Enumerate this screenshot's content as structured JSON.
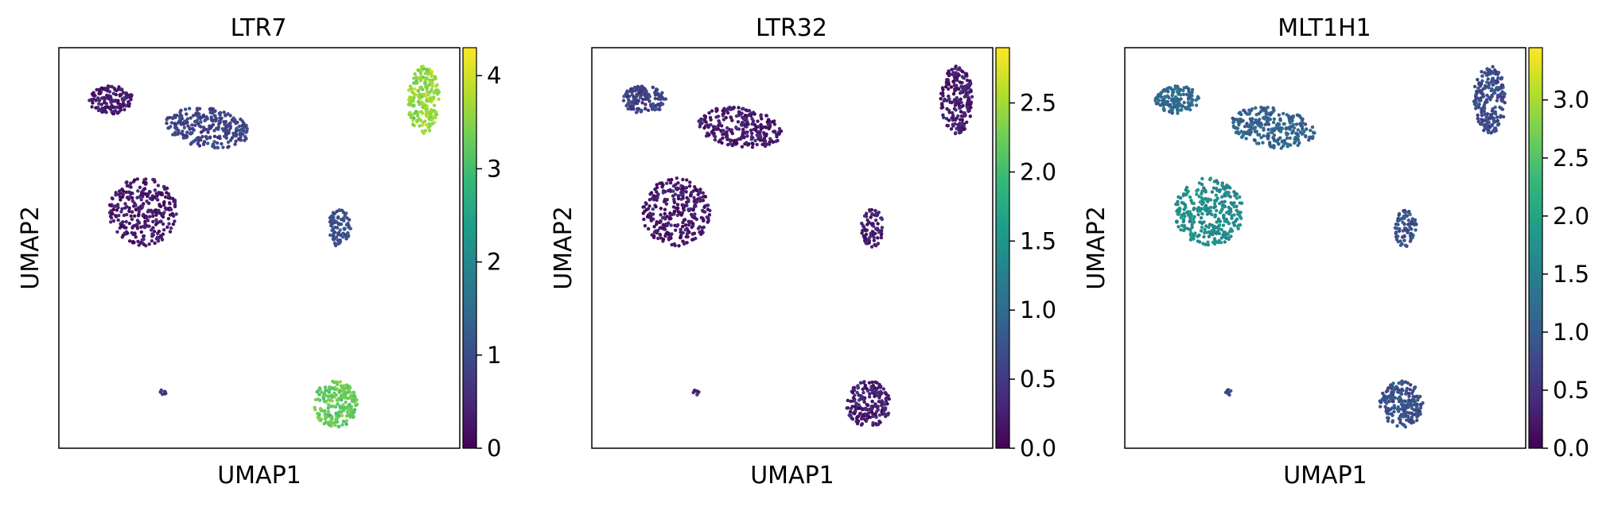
{
  "figure": {
    "background": "#ffffff"
  },
  "colormap": {
    "name": "viridis",
    "stops": [
      "#440154",
      "#482878",
      "#3e4989",
      "#31688e",
      "#26828e",
      "#1f9e89",
      "#35b779",
      "#6ece58",
      "#b5de2b",
      "#fde725"
    ]
  },
  "chart_data": [
    {
      "type": "scatter",
      "title": "LTR7",
      "xlabel": "UMAP1",
      "ylabel": "UMAP2",
      "xticks": false,
      "yticks": false,
      "colorbar": {
        "range": [
          0,
          4.3
        ],
        "ticks": [
          0,
          1,
          2,
          3,
          4
        ],
        "tick_labels": [
          "0",
          "1",
          "2",
          "3",
          "4"
        ]
      },
      "clusters": [
        {
          "name": "top-left",
          "center": [
            0.13,
            0.87
          ],
          "mean_value": 0.3
        },
        {
          "name": "top-mid",
          "center": [
            0.37,
            0.8
          ],
          "mean_value": 0.9
        },
        {
          "name": "mid-left",
          "center": [
            0.21,
            0.59
          ],
          "mean_value": 0.3
        },
        {
          "name": "top-right",
          "center": [
            0.91,
            0.87
          ],
          "mean_value": 3.6
        },
        {
          "name": "mid-right",
          "center": [
            0.7,
            0.55
          ],
          "mean_value": 1.1
        },
        {
          "name": "bottom-right",
          "center": [
            0.69,
            0.11
          ],
          "mean_value": 3.3
        },
        {
          "name": "small",
          "center": [
            0.26,
            0.14
          ],
          "mean_value": 0.7
        }
      ]
    },
    {
      "type": "scatter",
      "title": "LTR32",
      "xlabel": "UMAP1",
      "ylabel": "UMAP2",
      "xticks": false,
      "yticks": false,
      "colorbar": {
        "range": [
          0,
          2.9
        ],
        "ticks": [
          0,
          0.5,
          1,
          1.5,
          2,
          2.5
        ],
        "tick_labels": [
          "0.0",
          "0.5",
          "1.0",
          "1.5",
          "2.0",
          "2.5"
        ]
      },
      "clusters": [
        {
          "name": "top-left",
          "center": [
            0.13,
            0.87
          ],
          "mean_value": 0.6
        },
        {
          "name": "top-mid",
          "center": [
            0.37,
            0.8
          ],
          "mean_value": 0.2
        },
        {
          "name": "mid-left",
          "center": [
            0.21,
            0.59
          ],
          "mean_value": 0.2
        },
        {
          "name": "top-right",
          "center": [
            0.91,
            0.87
          ],
          "mean_value": 0.2
        },
        {
          "name": "mid-right",
          "center": [
            0.7,
            0.55
          ],
          "mean_value": 0.25
        },
        {
          "name": "bottom-right",
          "center": [
            0.69,
            0.11
          ],
          "mean_value": 0.25
        },
        {
          "name": "small",
          "center": [
            0.26,
            0.14
          ],
          "mean_value": 0.3
        }
      ]
    },
    {
      "type": "scatter",
      "title": "MLT1H1",
      "xlabel": "UMAP1",
      "ylabel": "UMAP2",
      "xticks": false,
      "yticks": false,
      "colorbar": {
        "range": [
          0,
          3.45
        ],
        "ticks": [
          0,
          0.5,
          1,
          1.5,
          2,
          2.5,
          3
        ],
        "tick_labels": [
          "0.0",
          "0.5",
          "1.0",
          "1.5",
          "2.0",
          "2.5",
          "3.0"
        ]
      },
      "clusters": [
        {
          "name": "top-left",
          "center": [
            0.13,
            0.87
          ],
          "mean_value": 1.2
        },
        {
          "name": "top-mid",
          "center": [
            0.37,
            0.8
          ],
          "mean_value": 1.1
        },
        {
          "name": "mid-left",
          "center": [
            0.21,
            0.59
          ],
          "mean_value": 1.7
        },
        {
          "name": "top-right",
          "center": [
            0.91,
            0.87
          ],
          "mean_value": 0.8
        },
        {
          "name": "mid-right",
          "center": [
            0.7,
            0.55
          ],
          "mean_value": 0.9
        },
        {
          "name": "bottom-right",
          "center": [
            0.69,
            0.11
          ],
          "mean_value": 0.9
        },
        {
          "name": "small",
          "center": [
            0.26,
            0.14
          ],
          "mean_value": 0.8
        }
      ]
    }
  ]
}
